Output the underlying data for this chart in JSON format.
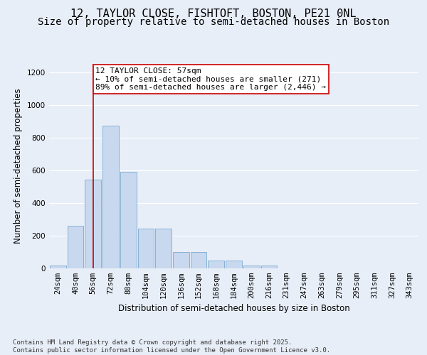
{
  "title_line1": "12, TAYLOR CLOSE, FISHTOFT, BOSTON, PE21 0NL",
  "title_line2": "Size of property relative to semi-detached houses in Boston",
  "xlabel": "Distribution of semi-detached houses by size in Boston",
  "ylabel": "Number of semi-detached properties",
  "categories": [
    "24sqm",
    "40sqm",
    "56sqm",
    "72sqm",
    "88sqm",
    "104sqm",
    "120sqm",
    "136sqm",
    "152sqm",
    "168sqm",
    "184sqm",
    "200sqm",
    "216sqm",
    "231sqm",
    "247sqm",
    "263sqm",
    "279sqm",
    "295sqm",
    "311sqm",
    "327sqm",
    "343sqm"
  ],
  "values": [
    15,
    260,
    540,
    870,
    590,
    240,
    240,
    100,
    100,
    45,
    45,
    15,
    15,
    0,
    0,
    0,
    0,
    0,
    0,
    0,
    0
  ],
  "bar_color": "#c8d8ee",
  "bar_edgecolor": "#7aaad0",
  "vline_x": 2,
  "vline_color": "#cc0000",
  "annotation_text": "12 TAYLOR CLOSE: 57sqm\n← 10% of semi-detached houses are smaller (271)\n89% of semi-detached houses are larger (2,446) →",
  "annotation_box_facecolor": "#ffffff",
  "annotation_box_edgecolor": "#cc0000",
  "ylim": [
    0,
    1250
  ],
  "yticks": [
    0,
    200,
    400,
    600,
    800,
    1000,
    1200
  ],
  "footer_text": "Contains HM Land Registry data © Crown copyright and database right 2025.\nContains public sector information licensed under the Open Government Licence v3.0.",
  "background_color": "#e8eef8",
  "grid_color": "#ffffff",
  "title_fontsize": 11,
  "subtitle_fontsize": 10,
  "axis_label_fontsize": 8.5,
  "tick_fontsize": 7.5,
  "annotation_fontsize": 8,
  "footer_fontsize": 6.5
}
